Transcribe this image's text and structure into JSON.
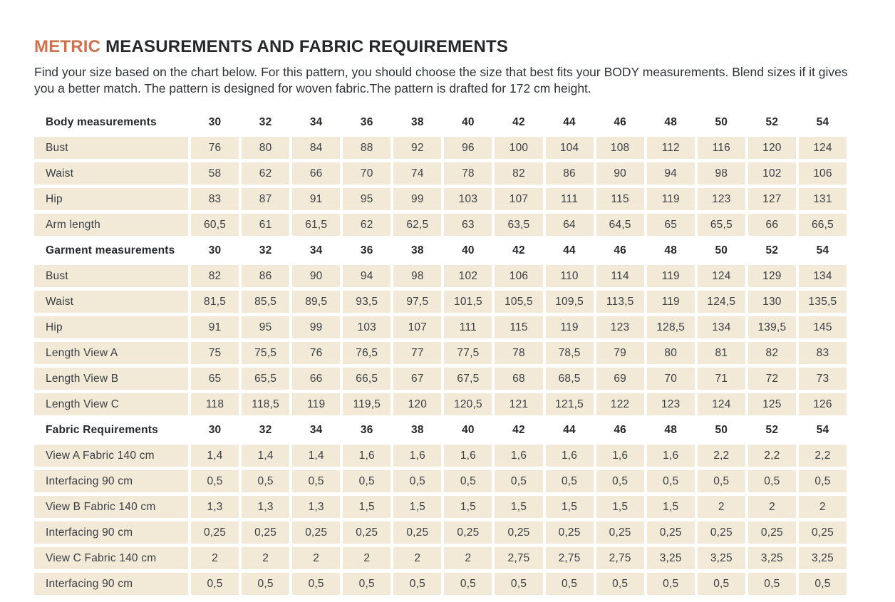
{
  "header": {
    "title_accent": "METRIC",
    "title_rest": " MEASUREMENTS AND FABRIC REQUIREMENTS",
    "intro": "Find your size based on the chart below. For this pattern, you should choose the size that best fits your BODY measurements. Blend sizes if it gives you a better match.  The pattern is designed for woven fabric.The pattern is drafted for 172 cm height."
  },
  "colors": {
    "accent": "#d2714d",
    "cell_background": "#f2e9d7",
    "text": "#3a4046"
  },
  "table": {
    "sizes": [
      "30",
      "32",
      "34",
      "36",
      "38",
      "40",
      "42",
      "44",
      "46",
      "48",
      "50",
      "52",
      "54"
    ],
    "sections": [
      {
        "header": "Body measurements",
        "rows": [
          {
            "label": "Bust",
            "values": [
              "76",
              "80",
              "84",
              "88",
              "92",
              "96",
              "100",
              "104",
              "108",
              "112",
              "116",
              "120",
              "124"
            ]
          },
          {
            "label": "Waist",
            "values": [
              "58",
              "62",
              "66",
              "70",
              "74",
              "78",
              "82",
              "86",
              "90",
              "94",
              "98",
              "102",
              "106"
            ]
          },
          {
            "label": "Hip",
            "values": [
              "83",
              "87",
              "91",
              "95",
              "99",
              "103",
              "107",
              "111",
              "115",
              "119",
              "123",
              "127",
              "131"
            ]
          },
          {
            "label": "Arm length",
            "values": [
              "60,5",
              "61",
              "61,5",
              "62",
              "62,5",
              "63",
              "63,5",
              "64",
              "64,5",
              "65",
              "65,5",
              "66",
              "66,5"
            ]
          }
        ]
      },
      {
        "header": "Garment measurements",
        "rows": [
          {
            "label": "Bust",
            "values": [
              "82",
              "86",
              "90",
              "94",
              "98",
              "102",
              "106",
              "110",
              "114",
              "119",
              "124",
              "129",
              "134"
            ]
          },
          {
            "label": "Waist",
            "values": [
              "81,5",
              "85,5",
              "89,5",
              "93,5",
              "97,5",
              "101,5",
              "105,5",
              "109,5",
              "113,5",
              "119",
              "124,5",
              "130",
              "135,5"
            ]
          },
          {
            "label": "Hip",
            "values": [
              "91",
              "95",
              "99",
              "103",
              "107",
              "111",
              "115",
              "119",
              "123",
              "128,5",
              "134",
              "139,5",
              "145"
            ]
          },
          {
            "label": "Length View A",
            "values": [
              "75",
              "75,5",
              "76",
              "76,5",
              "77",
              "77,5",
              "78",
              "78,5",
              "79",
              "80",
              "81",
              "82",
              "83"
            ]
          },
          {
            "label": "Length View B",
            "values": [
              "65",
              "65,5",
              "66",
              "66,5",
              "67",
              "67,5",
              "68",
              "68,5",
              "69",
              "70",
              "71",
              "72",
              "73"
            ]
          },
          {
            "label": "Length View C",
            "values": [
              "118",
              "118,5",
              "119",
              "119,5",
              "120",
              "120,5",
              "121",
              "121,5",
              "122",
              "123",
              "124",
              "125",
              "126"
            ]
          }
        ]
      },
      {
        "header": "Fabric Requirements",
        "rows": [
          {
            "label": "View A Fabric  140 cm",
            "values": [
              "1,4",
              "1,4",
              "1,4",
              "1,6",
              "1,6",
              "1,6",
              "1,6",
              "1,6",
              "1,6",
              "1,6",
              "2,2",
              "2,2",
              "2,2"
            ]
          },
          {
            "label": "Interfacing 90 cm",
            "values": [
              "0,5",
              "0,5",
              "0,5",
              "0,5",
              "0,5",
              "0,5",
              "0,5",
              "0,5",
              "0,5",
              "0,5",
              "0,5",
              "0,5",
              "0,5"
            ]
          },
          {
            "label": "View B Fabric 140 cm",
            "values": [
              "1,3",
              "1,3",
              "1,3",
              "1,5",
              "1,5",
              "1,5",
              "1,5",
              "1,5",
              "1,5",
              "1,5",
              "2",
              "2",
              "2"
            ]
          },
          {
            "label": "Interfacing 90 cm",
            "values": [
              "0,25",
              "0,25",
              "0,25",
              "0,25",
              "0,25",
              "0,25",
              "0,25",
              "0,25",
              "0,25",
              "0,25",
              "0,25",
              "0,25",
              "0,25"
            ]
          },
          {
            "label": "View C Fabric 140 cm",
            "values": [
              "2",
              "2",
              "2",
              "2",
              "2",
              "2",
              "2,75",
              "2,75",
              "2,75",
              "3,25",
              "3,25",
              "3,25",
              "3,25"
            ]
          },
          {
            "label": "Interfacing 90 cm",
            "values": [
              "0,5",
              "0,5",
              "0,5",
              "0,5",
              "0,5",
              "0,5",
              "0,5",
              "0,5",
              "0,5",
              "0,5",
              "0,5",
              "0,5",
              "0,5"
            ]
          }
        ]
      }
    ]
  }
}
